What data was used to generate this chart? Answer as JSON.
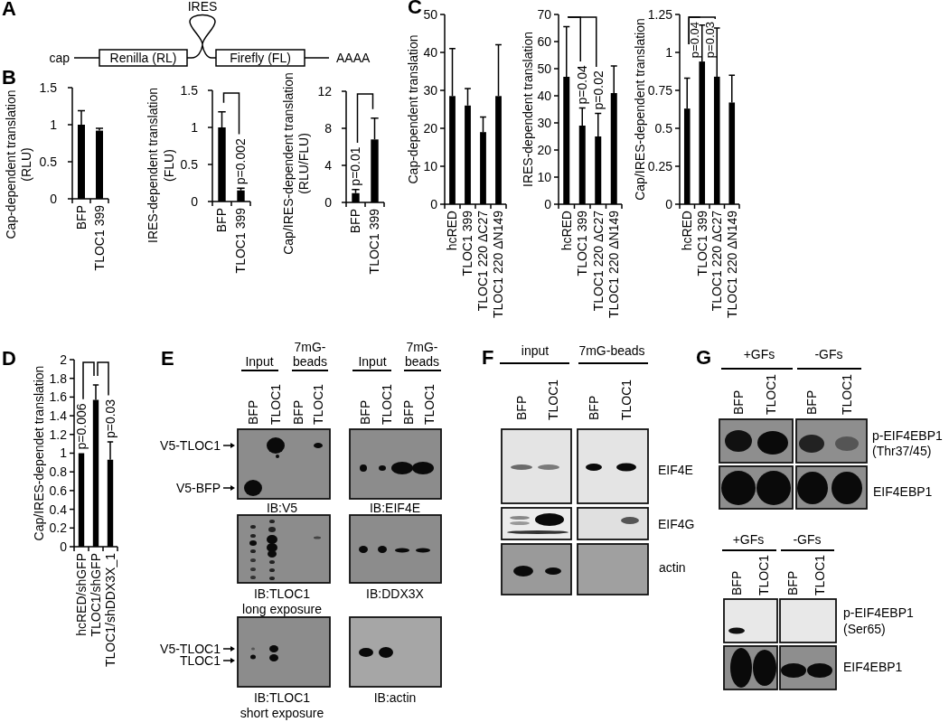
{
  "chart_data": [
    {
      "type": "other",
      "title": "A",
      "annotations": [
        "cap",
        "Renilla (RL)",
        "IRES",
        "Firefly (FL)",
        "AAAA"
      ]
    },
    {
      "type": "bar",
      "title": "B",
      "ylabel": "Cap-dependent translation\n(RLU)",
      "categories": [
        "BFP",
        "TLOC1 399"
      ],
      "values": [
        1.0,
        0.92
      ],
      "errors": [
        [
          1.0,
          1.19
        ],
        [
          0.92,
          0.95
        ]
      ],
      "color": "#000000",
      "ylim": [
        0,
        1.5
      ],
      "yticks": [
        0,
        0.5,
        1,
        1.5
      ]
    },
    {
      "type": "bar",
      "ylabel": "IRES-dependent translation\n(FLU)",
      "categories": [
        "BFP",
        "TLOC1 399"
      ],
      "values": [
        1.0,
        0.15
      ],
      "errors": [
        [
          1.0,
          1.21
        ],
        [
          0.15,
          0.18
        ]
      ],
      "color": "#000000",
      "ylim": [
        0,
        1.5
      ],
      "yticks": [
        0,
        0.5,
        1,
        1.5
      ],
      "annotations": [
        "p=0.002"
      ]
    },
    {
      "type": "bar",
      "ylabel": "Cap/IRES-dependent translation\n(RLU/FLU)",
      "categories": [
        "BFP",
        "TLOC1 399"
      ],
      "values": [
        1.0,
        6.8
      ],
      "errors": [
        [
          1.0,
          1.4
        ],
        [
          6.8,
          9.1
        ]
      ],
      "color": "#000000",
      "ylim": [
        0,
        12
      ],
      "yticks": [
        0,
        4,
        8,
        12
      ],
      "annotations": [
        "p=0.01"
      ]
    },
    {
      "type": "bar",
      "title": "C",
      "ylabel": "Cap-dependent translation",
      "categories": [
        "hcRED",
        "TLOC1 399",
        "TLOC1 220 ΔC27",
        "TLOC1 220 ΔN149"
      ],
      "values": [
        28.5,
        26,
        19,
        28.5
      ],
      "errors": [
        [
          28.5,
          41
        ],
        [
          26,
          30.5
        ],
        [
          19,
          23
        ],
        [
          28.5,
          42
        ]
      ],
      "color": "#000000",
      "ylim": [
        0,
        50
      ],
      "yticks": [
        0,
        10,
        20,
        30,
        40,
        50
      ]
    },
    {
      "type": "bar",
      "ylabel": "IRES-dependent translation",
      "categories": [
        "hcRED",
        "TLOC1 399",
        "TLOC1 220 ΔC27",
        "TLOC1 220 ΔN149"
      ],
      "values": [
        47,
        29,
        25,
        41
      ],
      "errors": [
        [
          47,
          65.5
        ],
        [
          29,
          35.5
        ],
        [
          25,
          33.5
        ],
        [
          41,
          51
        ]
      ],
      "color": "#000000",
      "ylim": [
        0,
        70
      ],
      "yticks": [
        0,
        10,
        20,
        30,
        40,
        50,
        60,
        70
      ],
      "annotations": [
        "p=0.04",
        "p=0.02"
      ]
    },
    {
      "type": "bar",
      "ylabel": "Cap/IRES-dependent translation",
      "categories": [
        "hcRED",
        "TLOC1 399",
        "TLOC1 220 ΔC27",
        "TLOC1 220 ΔN149"
      ],
      "values": [
        0.63,
        0.94,
        0.84,
        0.67
      ],
      "errors": [
        [
          0.63,
          0.83
        ],
        [
          0.94,
          1.18
        ],
        [
          0.84,
          1.16
        ],
        [
          0.67,
          0.85
        ]
      ],
      "color": "#000000",
      "ylim": [
        0,
        1.25
      ],
      "yticks": [
        0,
        0.25,
        0.5,
        0.75,
        1,
        1.25
      ],
      "annotations": [
        "p=0.04",
        "p=0.03"
      ]
    },
    {
      "type": "bar",
      "title": "D",
      "ylabel": "Cap/IRES-dependet translation",
      "categories": [
        "hcRED/shGFP",
        "TLOC1/shGFP",
        "TLOC1/shDDX3X_1"
      ],
      "values": [
        1.0,
        1.57,
        0.93
      ],
      "errors": [
        null,
        [
          1.57,
          1.73
        ],
        [
          0.93,
          1.12
        ]
      ],
      "color": "#000000",
      "ylim": [
        0,
        2
      ],
      "yticks": [
        0,
        0.2,
        0.4,
        0.6,
        0.8,
        1,
        1.2,
        1.4,
        1.6,
        1.8,
        2
      ],
      "annotations": [
        "p=0.006",
        "p=0.03"
      ]
    },
    {
      "type": "other",
      "title": "E",
      "annotations": [
        "Input",
        "7mG-\nbeads",
        "Input",
        "7mG-\nbeads",
        "BFP",
        "TLOC1",
        "BFP",
        "TLOC1",
        "BFP",
        "TLOC1",
        "BFP",
        "TLOC1",
        "V5-TLOC1",
        "V5-BFP",
        "IB:V5",
        "IB:EIF4E",
        "IB:TLOC1\nlong exposure",
        "IB:DDX3X",
        "V5-TLOC1",
        "TLOC1",
        "IB:TLOC1\nshort exposure",
        "IB:actin"
      ]
    },
    {
      "type": "other",
      "title": "F",
      "annotations": [
        "input",
        "7mG-beads",
        "BFP",
        "TLOC1",
        "BFP",
        "TLOC1",
        "EIF4E",
        "EIF4G",
        "actin"
      ]
    },
    {
      "type": "other",
      "title": "G",
      "annotations": [
        "+GFs",
        "-GFs",
        "BFP",
        "TLOC1",
        "BFP",
        "TLOC1",
        "p-EIF4EBP1\n(Thr37/45)",
        "EIF4EBP1",
        "+GFs",
        "-GFs",
        "BFP",
        "TLOC1",
        "BFP",
        "TLOC1",
        "p-EIF4EBP1\n(Ser65)",
        "EIF4EBP1"
      ]
    }
  ]
}
